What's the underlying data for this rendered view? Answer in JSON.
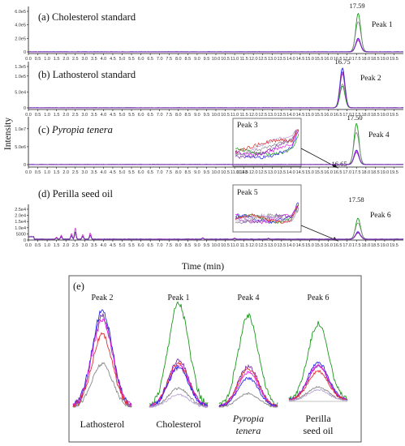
{
  "figure": {
    "y_axis_label": "Intensity",
    "x_axis_label": "Time (min)",
    "x_ticks": [
      "0.0",
      "0.5",
      "1.0",
      "1.5",
      "2.0",
      "2.5",
      "3.0",
      "3.5",
      "4.0",
      "4.5",
      "5.0",
      "5.5",
      "6.0",
      "6.5",
      "7.0",
      "7.5",
      "8.0",
      "8.5",
      "9.0",
      "9.5",
      "10.0",
      "10.5",
      "11.0",
      "11.5",
      "12.0",
      "12.5",
      "13.0",
      "13.5",
      "14.0",
      "14.5",
      "15.0",
      "15.5",
      "16.0",
      "16.5",
      "17.0",
      "17.5",
      "18.0",
      "18.5",
      "19.0",
      "19.5"
    ],
    "panel_e_label": "(e)"
  },
  "colors": {
    "green": "#1a9a1a",
    "blue": "#2a2ae8",
    "purple": "#7a2fa8",
    "magenta": "#e020e0",
    "red": "#e03030",
    "gray": "#888888",
    "lightpurple": "#b9a3d6"
  },
  "chart_data": [
    {
      "type": "line",
      "panel": "(a)",
      "title": "(a) Cholesterol standard",
      "xlabel": "Time (min)",
      "ylabel": "Intensity",
      "xlim": [
        0,
        20
      ],
      "ylim": [
        0,
        600000
      ],
      "y_ticks": [
        "6.0e5",
        "4.0e5",
        "2.0e5",
        "0"
      ],
      "peak": {
        "time": 17.59,
        "height": 570000,
        "label": "Peak 1",
        "rt_label": "17.59"
      }
    },
    {
      "type": "line",
      "panel": "(b)",
      "title": "(b) Lathosterol standard",
      "xlabel": "Time (min)",
      "ylabel": "Intensity",
      "xlim": [
        0,
        20
      ],
      "ylim": [
        0,
        130000
      ],
      "y_ticks": [
        "1.3e5",
        "1.0e5",
        "5.0e4",
        "0"
      ],
      "peak": {
        "time": 16.75,
        "height": 125000,
        "label": "Peak 2",
        "rt_label": "16.75"
      }
    },
    {
      "type": "line",
      "panel": "(c)",
      "title_prefix": "(c) ",
      "title_italic": "Pyropia tenera",
      "xlabel": "Time (min)",
      "ylabel": "Intensity",
      "xlim": [
        0,
        20
      ],
      "ylim": [
        0,
        12000000
      ],
      "y_ticks": [
        "1.0e7",
        "5.0e6",
        "0"
      ],
      "peaks": [
        {
          "time": 17.5,
          "height": 11500000,
          "label": "Peak 4",
          "rt_label": "17.50"
        },
        {
          "time": 16.65,
          "height": 150000,
          "label": "Peak 3",
          "rt_label": "16.65"
        }
      ],
      "minor_label": "11.40",
      "inset_label": "Peak 3"
    },
    {
      "type": "line",
      "panel": "(d)",
      "title": "(d) Perilla seed oil",
      "xlabel": "Time (min)",
      "ylabel": "Intensity",
      "xlim": [
        0,
        20
      ],
      "ylim": [
        0,
        25000
      ],
      "y_ticks": [
        "2.5e4",
        "2.0e4",
        "1.5e4",
        "1.0e4",
        "5000",
        "0"
      ],
      "peaks": [
        {
          "time": 17.58,
          "height": 17000,
          "label": "Peak 6",
          "rt_label": "17.58"
        },
        {
          "time": 16.6,
          "height": 1500,
          "label": "Peak 5"
        }
      ],
      "inset_label": "Peak 5"
    },
    {
      "type": "line",
      "panel": "(e)",
      "title": "(e)",
      "items": [
        {
          "peak": "Peak 2",
          "name_lines": [
            "Lathosterol"
          ],
          "italic": false
        },
        {
          "peak": "Peak 1",
          "name_lines": [
            "Cholesterol"
          ],
          "italic": false
        },
        {
          "peak": "Peak 4",
          "name_lines": [
            "Pyropia",
            "tenera"
          ],
          "italic": true
        },
        {
          "peak": "Peak 6",
          "name_lines": [
            "Perilla",
            "seed oil"
          ],
          "italic": false
        }
      ]
    }
  ]
}
